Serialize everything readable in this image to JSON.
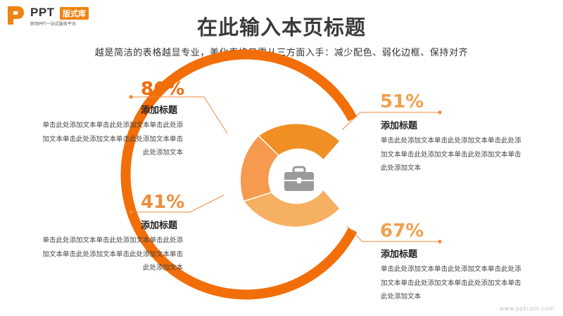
{
  "logo": {
    "brand": "PPT",
    "badge": "版式库",
    "tagline": "职场PPT一站式服务平台"
  },
  "header": {
    "title": "在此输入本页标题",
    "subtitle": "越是简洁的表格越显专业，美化表格只需从三方面入手：减少配色、弱化边框、保持对齐"
  },
  "items": [
    {
      "percent": "86%",
      "title": "添加标题",
      "body": "单击此处添加文本单击此处添加文本单击此处添加文本单击此处添加文本单击此处添加文本单击此处添加文本",
      "color": "#f06d0a"
    },
    {
      "percent": "51%",
      "title": "添加标题",
      "body": "单击此处添加文本单击此处添加文本单击此处添加文本单击此处添加文本单击此处添加文本单击此处添加文本",
      "color": "#f0a04c"
    },
    {
      "percent": "41%",
      "title": "添加标题",
      "body": "单击此处添加文本单击此处添加文本单击此处添加文本单击此处添加文本单击此处添加文本单击此处添加文本",
      "color": "#f08c3a"
    },
    {
      "percent": "67%",
      "title": "添加标题",
      "body": "单击此处添加文本单击此处添加文本单击此处添加文本单击此处添加文本单击此处添加文本单击此处添加文本",
      "color": "#f0a04c"
    }
  ],
  "colors": {
    "outer_ring": "#f26e08",
    "segment_top": "#ef8f24",
    "segment_left": "#f59a4e",
    "segment_bottom": "#f5b061",
    "leader_line": "#f08a3c",
    "icon": "#9a9a9a"
  },
  "icon": "briefcase-icon",
  "watermark": "www.pptcool.com"
}
